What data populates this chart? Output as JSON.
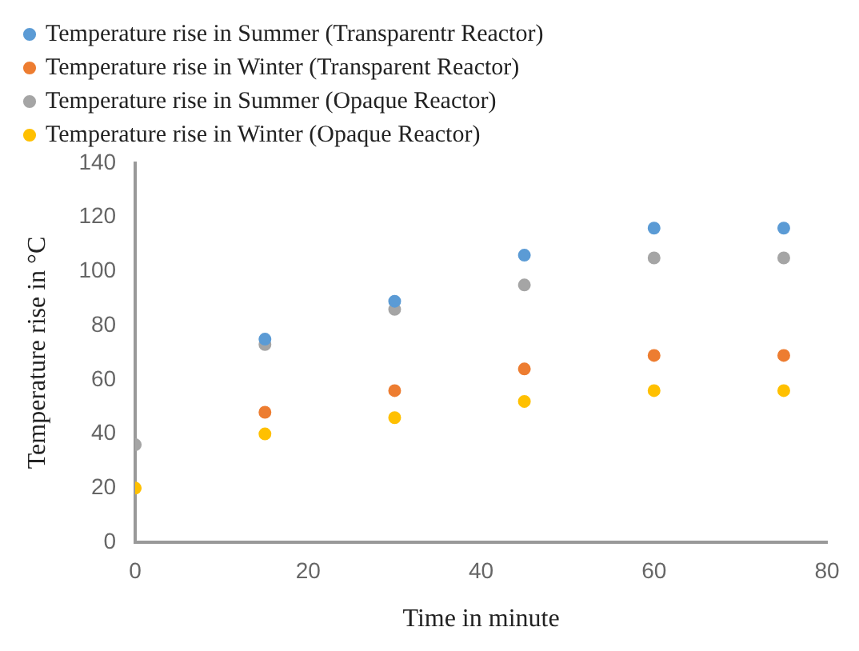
{
  "chart_data": {
    "type": "scatter",
    "xlabel": "Time in minute",
    "ylabel": "Temperature rise in °C",
    "x": [
      0,
      15,
      30,
      45,
      60,
      75
    ],
    "series": [
      {
        "name": "Temperature rise in Summer (Transparentr Reactor)",
        "color": "#5b9bd5",
        "values": [
          null,
          75,
          89,
          106,
          116,
          116
        ]
      },
      {
        "name": "Temperature rise in Winter (Transparent Reactor)",
        "color": "#ed7d31",
        "values": [
          null,
          48,
          56,
          64,
          69,
          69
        ]
      },
      {
        "name": "Temperature rise in Summer (Opaque Reactor)",
        "color": "#a5a5a5",
        "values": [
          36,
          73,
          86,
          95,
          105,
          105
        ]
      },
      {
        "name": "Temperature rise in Winter (Opaque Reactor)",
        "color": "#ffc000",
        "values": [
          20,
          40,
          46,
          52,
          56,
          56
        ]
      }
    ],
    "xlim": [
      0,
      80
    ],
    "xticks": [
      0,
      20,
      40,
      60,
      80
    ],
    "ylim": [
      0,
      140
    ],
    "yticks": [
      0,
      20,
      40,
      60,
      80,
      100,
      120,
      140
    ],
    "grid": false,
    "legend": "top left",
    "marker": "circle"
  }
}
